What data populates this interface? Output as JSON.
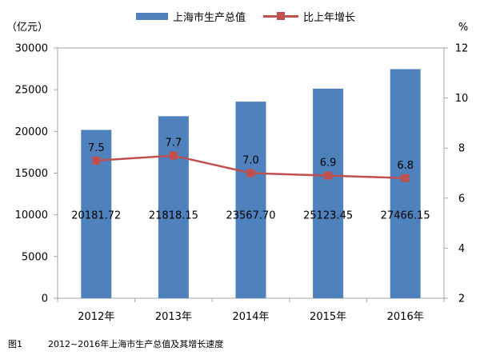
{
  "colors": {
    "bar": "#4f81bd",
    "line": "#c0504d",
    "plot_border": "#a6a6a6",
    "grid": "#d9d9d9",
    "text": "#000000"
  },
  "legend": {
    "position": "top",
    "bar_label": "上海市生产总值",
    "line_label": "比上年增长"
  },
  "caption": {
    "figure_number": "图1",
    "text": "2012~2016年上海市生产总值及其增长速度"
  },
  "chart_data": {
    "type": "bar",
    "title": "",
    "grid": false,
    "categories": [
      "2012年",
      "2013年",
      "2014年",
      "2015年",
      "2016年"
    ],
    "x_tick_labels": [
      "2012年",
      "2013年",
      "2014年",
      "2015年",
      "2016年"
    ],
    "series": [
      {
        "name": "上海市生产总值",
        "type": "bar",
        "axis": "left",
        "values": [
          20181.72,
          21818.15,
          23567.7,
          25123.45,
          27466.15
        ],
        "labels": [
          "20181.72",
          "21818.15",
          "23567.70",
          "25123.45",
          "27466.15"
        ]
      },
      {
        "name": "比上年增长",
        "type": "line",
        "axis": "right",
        "marker": "square",
        "values": [
          7.5,
          7.7,
          7.0,
          6.9,
          6.8
        ],
        "labels": [
          "7.5",
          "7.7",
          "7.0",
          "6.9",
          "6.8"
        ]
      }
    ],
    "y_left": {
      "label": "（亿元）",
      "ylim": [
        0,
        30000
      ],
      "ticks": [
        0,
        5000,
        10000,
        15000,
        20000,
        25000,
        30000
      ],
      "tick_labels": [
        "0",
        "5000",
        "10000",
        "15000",
        "20000",
        "25000",
        "30000"
      ]
    },
    "y_right": {
      "label": "%",
      "ylim": [
        2,
        12
      ],
      "ticks": [
        2,
        4,
        6,
        8,
        10,
        12
      ],
      "tick_labels": [
        "2",
        "4",
        "6",
        "8",
        "10",
        "12"
      ]
    }
  }
}
